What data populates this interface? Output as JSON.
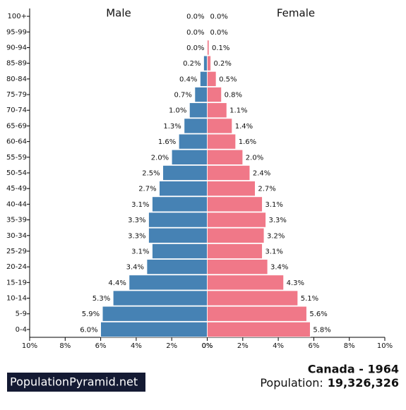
{
  "chart_data": {
    "type": "pyramid",
    "left_label": "Male",
    "right_label": "Female",
    "categories": [
      "100+",
      "95-99",
      "90-94",
      "85-89",
      "80-84",
      "75-79",
      "70-74",
      "65-69",
      "60-64",
      "55-59",
      "50-54",
      "45-49",
      "40-44",
      "35-39",
      "30-34",
      "25-29",
      "20-24",
      "15-19",
      "10-14",
      "5-9",
      "0-4"
    ],
    "series": [
      {
        "name": "Male",
        "color": "#4682b4",
        "side": "left",
        "values": [
          0.0,
          0.0,
          0.0,
          0.2,
          0.4,
          0.7,
          1.0,
          1.3,
          1.6,
          2.0,
          2.5,
          2.7,
          3.1,
          3.3,
          3.3,
          3.1,
          3.4,
          4.4,
          5.3,
          5.9,
          6.0
        ],
        "value_labels": [
          "0.0%",
          "0.0%",
          "0.0%",
          "0.2%",
          "0.4%",
          "0.7%",
          "1.0%",
          "1.3%",
          "1.6%",
          "2.0%",
          "2.5%",
          "2.7%",
          "3.1%",
          "3.3%",
          "3.3%",
          "3.1%",
          "3.4%",
          "4.4%",
          "5.3%",
          "5.9%",
          "6.0%"
        ]
      },
      {
        "name": "Female",
        "color": "#f07888",
        "side": "right",
        "values": [
          0.0,
          0.0,
          0.1,
          0.2,
          0.5,
          0.8,
          1.1,
          1.4,
          1.6,
          2.0,
          2.4,
          2.7,
          3.1,
          3.3,
          3.2,
          3.1,
          3.4,
          4.3,
          5.1,
          5.6,
          5.8
        ],
        "value_labels": [
          "0.0%",
          "0.0%",
          "0.1%",
          "0.2%",
          "0.5%",
          "0.8%",
          "1.1%",
          "1.4%",
          "1.6%",
          "2.0%",
          "2.4%",
          "2.7%",
          "3.1%",
          "3.3%",
          "3.2%",
          "3.1%",
          "3.4%",
          "4.3%",
          "5.1%",
          "5.6%",
          "5.8%"
        ]
      }
    ],
    "xlim": [
      0,
      10
    ],
    "xticks": [
      {
        "value": 0,
        "label": "0%"
      },
      {
        "value": 2,
        "label": "2%"
      },
      {
        "value": 4,
        "label": "4%"
      },
      {
        "value": 6,
        "label": "6%"
      },
      {
        "value": 8,
        "label": "8%"
      },
      {
        "value": 10,
        "label": "10%"
      }
    ]
  },
  "footer": {
    "brand": "PopulationPyramid.net",
    "country_year": "Canada - 1964",
    "population_label": "Population:",
    "population": "19,326,326"
  }
}
